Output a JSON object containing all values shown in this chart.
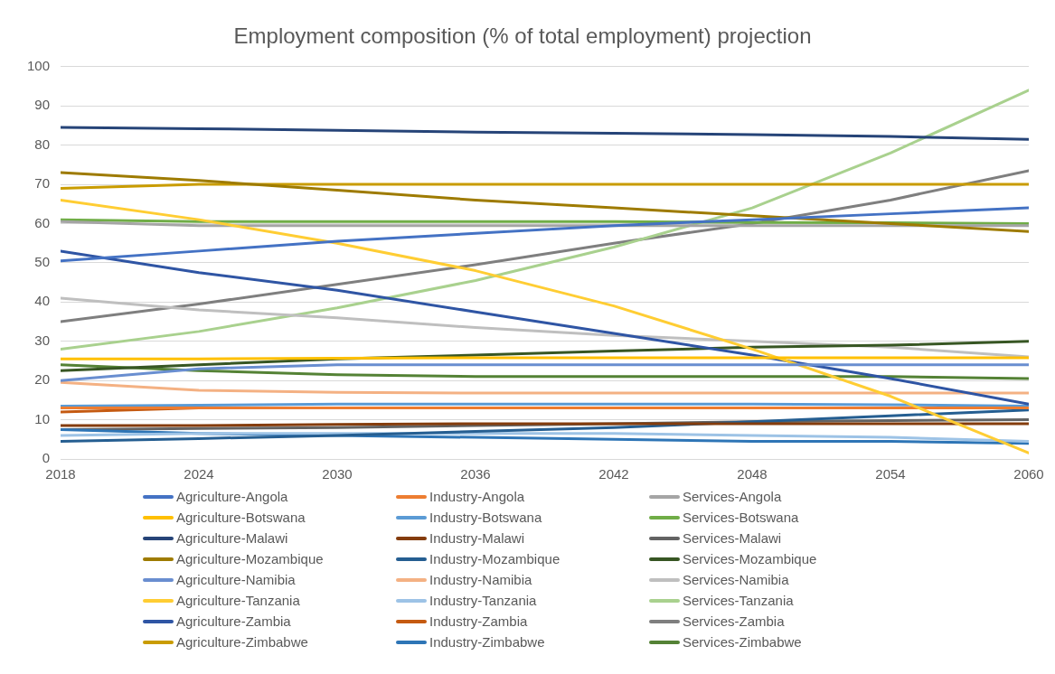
{
  "chart_data": {
    "type": "line",
    "title": "Employment composition (% of total employment) projection",
    "x": [
      2018,
      2024,
      2030,
      2036,
      2042,
      2048,
      2054,
      2060
    ],
    "xlim": [
      2018,
      2060
    ],
    "xticks": [
      2018,
      2024,
      2030,
      2036,
      2042,
      2048,
      2054,
      2060
    ],
    "ylim": [
      0,
      100
    ],
    "yticks": [
      0,
      10,
      20,
      30,
      40,
      50,
      60,
      70,
      80,
      90,
      100
    ],
    "grid": "y",
    "legend": "bottom",
    "marker": "none",
    "line_style": "solid",
    "series": [
      {
        "name": "Agriculture-Angola",
        "color": "#4472c4",
        "values": [
          50.5,
          53,
          55.5,
          57.5,
          59.5,
          61,
          62.5,
          64
        ]
      },
      {
        "name": "Agriculture-Botswana",
        "color": "#ffc000",
        "values": [
          25.5,
          25.5,
          25.7,
          25.8,
          25.8,
          25.8,
          25.8,
          25.8
        ]
      },
      {
        "name": "Agriculture-Malawi",
        "color": "#264478",
        "values": [
          84.5,
          84.2,
          83.8,
          83.3,
          83,
          82.7,
          82.2,
          81.5
        ]
      },
      {
        "name": "Agriculture-Mozambique",
        "color": "#9e7b00",
        "values": [
          73,
          71,
          68.5,
          66,
          64,
          62,
          60,
          58
        ]
      },
      {
        "name": "Agriculture-Namibia",
        "color": "#698ed0",
        "values": [
          20,
          23,
          24,
          24,
          24,
          24,
          24,
          24
        ]
      },
      {
        "name": "Agriculture-Tanzania",
        "color": "#ffcd33",
        "values": [
          66,
          61,
          55,
          48,
          39,
          28,
          16,
          1.5
        ]
      },
      {
        "name": "Agriculture-Zambia",
        "color": "#2f55a4",
        "values": [
          53,
          47.5,
          43,
          37.5,
          32,
          26.5,
          20.5,
          14
        ]
      },
      {
        "name": "Agriculture-Zimbabwe",
        "color": "#c99c00",
        "values": [
          69,
          70,
          70,
          70,
          70,
          70,
          70,
          70
        ]
      },
      {
        "name": "Industry-Angola",
        "color": "#ed7d31",
        "values": [
          13,
          13,
          13,
          13,
          13,
          13,
          13,
          13
        ]
      },
      {
        "name": "Industry-Botswana",
        "color": "#5b9bd5",
        "values": [
          13.5,
          13.7,
          14,
          14,
          14,
          14,
          13.8,
          13.5
        ]
      },
      {
        "name": "Industry-Malawi",
        "color": "#843c0c",
        "values": [
          8.5,
          8.5,
          8.8,
          9,
          9,
          9,
          9,
          9
        ]
      },
      {
        "name": "Industry-Mozambique",
        "color": "#255e91",
        "values": [
          4.5,
          5.2,
          6,
          7,
          8,
          9.5,
          11,
          12.5
        ]
      },
      {
        "name": "Industry-Namibia",
        "color": "#f4b183",
        "values": [
          19.5,
          17.5,
          17,
          16.8,
          16.8,
          16.8,
          16.8,
          16.8
        ]
      },
      {
        "name": "Industry-Tanzania",
        "color": "#9dc3e6",
        "values": [
          6,
          6.5,
          6.5,
          6.5,
          6.5,
          6,
          5.5,
          4.5
        ]
      },
      {
        "name": "Industry-Zambia",
        "color": "#c55a11",
        "values": [
          12,
          13,
          13,
          13,
          13,
          13,
          13,
          13
        ]
      },
      {
        "name": "Industry-Zimbabwe",
        "color": "#2e75b6",
        "values": [
          7.5,
          6.5,
          6,
          5.5,
          5,
          4.5,
          4.5,
          4
        ]
      },
      {
        "name": "Services-Angola",
        "color": "#a5a5a5",
        "values": [
          60.5,
          59.5,
          59.5,
          59.5,
          59.5,
          59.5,
          59.5,
          59.5
        ]
      },
      {
        "name": "Services-Botswana",
        "color": "#70ad47",
        "values": [
          61,
          60.5,
          60.5,
          60.5,
          60.5,
          60.3,
          60.2,
          60
        ]
      },
      {
        "name": "Services-Malawi",
        "color": "#636363",
        "values": [
          7.5,
          7.8,
          8,
          8.5,
          9,
          9.5,
          9.8,
          10
        ]
      },
      {
        "name": "Services-Mozambique",
        "color": "#375623",
        "values": [
          22.5,
          24,
          25.5,
          26.5,
          27.5,
          28.5,
          29,
          30
        ]
      },
      {
        "name": "Services-Namibia",
        "color": "#bfbfbf",
        "values": [
          41,
          38,
          36,
          33.5,
          31.5,
          30,
          28.5,
          26
        ]
      },
      {
        "name": "Services-Tanzania",
        "color": "#a9d18e",
        "values": [
          28,
          32.5,
          38.5,
          45.5,
          54,
          64,
          78,
          94
        ]
      },
      {
        "name": "Services-Zambia",
        "color": "#7f7f7f",
        "values": [
          35,
          39.5,
          44.5,
          49.5,
          55,
          60,
          66,
          73.5
        ]
      },
      {
        "name": "Services-Zimbabwe",
        "color": "#548235",
        "values": [
          24,
          22.5,
          21.5,
          21,
          21,
          21,
          21,
          20.5
        ]
      }
    ]
  }
}
